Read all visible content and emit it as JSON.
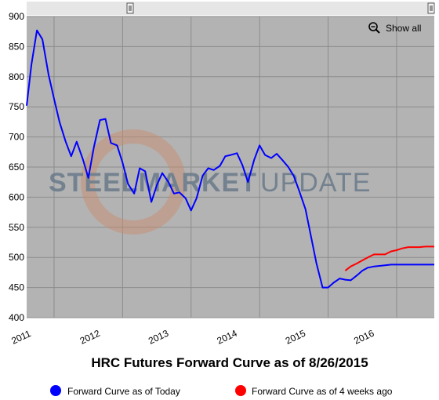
{
  "chart_data": {
    "type": "line",
    "title": "HRC Futures Forward Curve as of 8/26/2015",
    "xlabel": "",
    "ylabel": "",
    "xlim": [
      2010.6,
      2016.55
    ],
    "ylim": [
      400,
      900
    ],
    "y_ticks": [
      400,
      450,
      500,
      550,
      600,
      650,
      700,
      750,
      800,
      850,
      900
    ],
    "x_ticks": [
      {
        "label": "2011",
        "x": 2011.0
      },
      {
        "label": "2012",
        "x": 2012.0
      },
      {
        "label": "2013",
        "x": 2013.0
      },
      {
        "label": "2014",
        "x": 2014.0
      },
      {
        "label": "2015",
        "x": 2015.0
      },
      {
        "label": "2016",
        "x": 2016.0
      }
    ],
    "grid": true,
    "legend_position": "bottom",
    "series": [
      {
        "name": "Forward Curve as of Today",
        "color": "#0000ff",
        "x": [
          2010.6,
          2010.67,
          2010.75,
          2010.83,
          2010.92,
          2011.0,
          2011.08,
          2011.17,
          2011.25,
          2011.33,
          2011.42,
          2011.5,
          2011.58,
          2011.67,
          2011.75,
          2011.83,
          2011.92,
          2012.0,
          2012.08,
          2012.17,
          2012.25,
          2012.33,
          2012.42,
          2012.5,
          2012.58,
          2012.67,
          2012.75,
          2012.83,
          2012.92,
          2013.0,
          2013.08,
          2013.17,
          2013.25,
          2013.33,
          2013.42,
          2013.5,
          2013.58,
          2013.67,
          2013.75,
          2013.83,
          2013.92,
          2014.0,
          2014.08,
          2014.17,
          2014.25,
          2014.33,
          2014.42,
          2014.5,
          2014.58,
          2014.67,
          2014.75,
          2014.83,
          2014.92,
          2015.0,
          2015.08,
          2015.17,
          2015.25,
          2015.33,
          2015.42,
          2015.5,
          2015.58,
          2015.67,
          2015.75,
          2015.83,
          2015.92,
          2016.0,
          2016.08,
          2016.17,
          2016.25,
          2016.33,
          2016.42,
          2016.5,
          2016.55
        ],
        "values": [
          752,
          820,
          877,
          862,
          803,
          763,
          725,
          692,
          668,
          692,
          663,
          632,
          682,
          728,
          730,
          690,
          686,
          657,
          622,
          606,
          648,
          643,
          592,
          620,
          640,
          625,
          606,
          608,
          598,
          578,
          598,
          636,
          648,
          645,
          652,
          668,
          670,
          673,
          653,
          625,
          662,
          686,
          670,
          665,
          672,
          662,
          650,
          635,
          610,
          580,
          535,
          490,
          450,
          450,
          458,
          465,
          463,
          462,
          470,
          478,
          483,
          485,
          486,
          487,
          488,
          488,
          488,
          488,
          488,
          488,
          488,
          488,
          488
        ]
      },
      {
        "name": "Forward Curve as of 4 weeks ago",
        "color": "#ff0000",
        "x": [
          2015.25,
          2015.33,
          2015.42,
          2015.5,
          2015.58,
          2015.67,
          2015.75,
          2015.83,
          2015.92,
          2016.0,
          2016.08,
          2016.17,
          2016.25,
          2016.33,
          2016.42,
          2016.5,
          2016.55
        ],
        "values": [
          478,
          485,
          490,
          495,
          500,
          505,
          505,
          505,
          510,
          512,
          515,
          517,
          517,
          517,
          518,
          518,
          518
        ]
      }
    ]
  },
  "controls": {
    "show_all_label": "Show all"
  },
  "watermark": {
    "part1": "STEEL",
    "part2": "MARKET",
    "part3": "UPDATE"
  }
}
